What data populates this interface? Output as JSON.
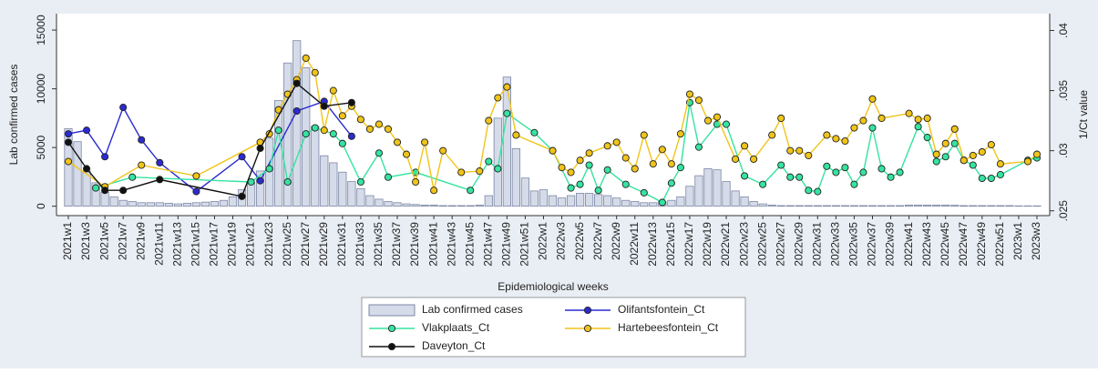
{
  "chart_data": {
    "type": "combo",
    "xlabel": "Epidemiological weeks",
    "ylabel": "Lab confirmed cases",
    "y2label": "1/Ct value",
    "categories": [
      "2021w1",
      null,
      "2021w3",
      null,
      "2021w5",
      null,
      "2021w7",
      null,
      "2021w9",
      null,
      "2021w11",
      null,
      "2021w13",
      null,
      "2021w15",
      null,
      "2021w17",
      null,
      "2021w19",
      null,
      "2021w21",
      null,
      "2021w23",
      null,
      "2021w25",
      null,
      "2021w27",
      null,
      "2021w29",
      null,
      "2021w31",
      null,
      "2021w33",
      null,
      "2021w35",
      null,
      "2021w37",
      null,
      "2021w39",
      null,
      "2021w41",
      null,
      "2021w43",
      null,
      "2021w45",
      null,
      "2021w47",
      null,
      "2021w49",
      null,
      "2021w51",
      null,
      "2022w1",
      null,
      "2022w3",
      null,
      "2022w5",
      null,
      "2022w7",
      null,
      "2022w9",
      null,
      "2022w11",
      null,
      "2022w13",
      null,
      "2022w15",
      null,
      "2022w17",
      null,
      "2022w19",
      null,
      "2022w21",
      null,
      "2022w23",
      null,
      "2022w25",
      null,
      "2022w27",
      null,
      "2022w29",
      null,
      "2022w31",
      null,
      "2022w33",
      null,
      "2022w35",
      null,
      "2022w37",
      null,
      "2022w39",
      null,
      "2022w41",
      null,
      "2022w43",
      null,
      "2022w45",
      null,
      "2022w47",
      null,
      "2022w49",
      null,
      "2022w51",
      null,
      "2023w1",
      null,
      "2023w3"
    ],
    "ylim": [
      -800,
      16400
    ],
    "yticks": [
      0,
      5000,
      10000,
      15000
    ],
    "y2lim": [
      0.0246,
      0.0414
    ],
    "y2ticks": [
      {
        "value": 0.025,
        "label": ".025"
      },
      {
        "value": 0.03,
        "label": ".03"
      },
      {
        "value": 0.035,
        "label": ".035"
      },
      {
        "value": 0.04,
        "label": ".04"
      }
    ],
    "series": [
      {
        "name": "Lab confirmed cases",
        "type": "bar",
        "color": "#d5dbe8",
        "edgecolor": "#7c87a6",
        "values": [
          6600,
          5500,
          3000,
          2000,
          1200,
          800,
          500,
          400,
          300,
          300,
          300,
          250,
          200,
          250,
          300,
          350,
          400,
          500,
          800,
          1400,
          2000,
          3000,
          5800,
          9000,
          12200,
          14100,
          11800,
          6800,
          4300,
          3700,
          2900,
          2100,
          1500,
          900,
          600,
          400,
          300,
          200,
          150,
          100,
          100,
          50,
          50,
          50,
          50,
          100,
          900,
          7500,
          11000,
          4900,
          2400,
          1300,
          1400,
          900,
          700,
          900,
          1100,
          1100,
          1000,
          900,
          700,
          500,
          400,
          300,
          300,
          400,
          500,
          800,
          1700,
          2600,
          3200,
          3100,
          2100,
          1300,
          800,
          400,
          200,
          100,
          50,
          50,
          50,
          50,
          50,
          50,
          50,
          50,
          50,
          50,
          50,
          50,
          50,
          50,
          100,
          100,
          100,
          100,
          100,
          80,
          50,
          50,
          50,
          50,
          50,
          50,
          30,
          30,
          30
        ]
      },
      {
        "name": "Olifantsfontein_Ct",
        "type": "line",
        "axis": "y2",
        "color": "#2b2bd0",
        "values": [
          0.0314,
          null,
          0.0317,
          null,
          0.0295,
          null,
          0.0336,
          null,
          0.0309,
          null,
          0.029,
          null,
          null,
          null,
          0.0266,
          null,
          null,
          null,
          null,
          0.0295,
          null,
          0.0275,
          null,
          null,
          null,
          0.0333,
          null,
          null,
          0.0341,
          null,
          null,
          0.0312,
          null,
          null,
          null,
          null,
          null,
          null,
          null,
          null,
          null,
          null,
          null,
          null,
          null,
          null,
          null,
          null,
          null,
          null,
          null,
          null,
          null,
          null,
          null,
          null,
          null,
          null,
          null,
          null,
          null,
          null,
          null,
          null,
          null,
          null,
          null,
          null,
          null,
          null,
          null,
          null,
          null,
          null,
          null,
          null,
          null,
          null,
          null,
          null,
          null,
          null,
          null,
          null,
          null,
          null,
          null,
          null,
          null,
          null,
          null,
          null,
          null,
          null,
          null,
          null,
          null,
          null,
          null,
          null,
          null,
          null,
          null,
          null,
          null,
          null,
          null
        ]
      },
      {
        "name": "Vlakplaats_Ct",
        "type": "line",
        "axis": "y2",
        "color": "#36e3a0",
        "values": [
          null,
          null,
          null,
          0.0269,
          null,
          null,
          null,
          0.0278,
          null,
          null,
          null,
          null,
          null,
          null,
          null,
          null,
          null,
          null,
          null,
          null,
          0.0274,
          null,
          0.0285,
          0.0317,
          0.0274,
          null,
          0.0314,
          0.0319,
          null,
          0.0314,
          0.0306,
          null,
          0.0274,
          null,
          0.0298,
          0.0278,
          null,
          null,
          0.0282,
          null,
          null,
          null,
          null,
          null,
          0.0267,
          null,
          0.0291,
          0.0285,
          0.0331,
          null,
          null,
          0.0315,
          null,
          0.03,
          null,
          0.0269,
          0.0272,
          0.0288,
          0.0267,
          0.0284,
          null,
          0.0272,
          null,
          0.0265,
          null,
          0.0257,
          0.0273,
          0.0286,
          0.034,
          0.0303,
          null,
          0.0322,
          0.0322,
          null,
          0.0279,
          null,
          0.0272,
          null,
          0.0288,
          0.0278,
          0.0278,
          0.0267,
          0.0266,
          0.0287,
          0.0282,
          0.0286,
          0.0272,
          0.0282,
          0.0319,
          0.0285,
          0.0278,
          0.0282,
          null,
          0.032,
          0.0311,
          0.0291,
          0.0295,
          0.0306,
          0.0292,
          0.0288,
          0.0277,
          0.0277,
          0.028,
          null,
          null,
          0.0292,
          0.0294
        ]
      },
      {
        "name": "Hartebeesfontein_Ct",
        "type": "line",
        "axis": "y2",
        "color": "#f0c419",
        "values": [
          0.0291,
          null,
          null,
          null,
          0.027,
          null,
          null,
          null,
          0.0288,
          null,
          null,
          null,
          null,
          null,
          0.0279,
          null,
          null,
          null,
          null,
          null,
          null,
          0.0307,
          0.0314,
          0.0334,
          0.0347,
          0.0359,
          0.0377,
          0.0365,
          0.0317,
          0.035,
          0.0329,
          0.0337,
          0.0326,
          0.0318,
          0.0322,
          0.0318,
          0.0307,
          0.0297,
          0.0274,
          0.0307,
          0.0267,
          0.03,
          null,
          0.0282,
          null,
          0.0283,
          0.0325,
          0.0344,
          0.0353,
          0.0313,
          null,
          null,
          null,
          0.03,
          0.0286,
          0.0282,
          0.0292,
          0.0298,
          null,
          0.0304,
          0.0307,
          0.0294,
          0.0285,
          0.0313,
          0.0289,
          0.0301,
          0.0289,
          0.0314,
          0.0347,
          0.0342,
          0.0325,
          0.0328,
          null,
          0.0293,
          0.0304,
          0.0293,
          null,
          0.0313,
          0.0327,
          0.03,
          0.03,
          0.0296,
          null,
          0.0313,
          0.031,
          0.0308,
          0.0319,
          0.0325,
          0.0343,
          0.0327,
          null,
          null,
          0.0331,
          0.0326,
          0.0327,
          0.0297,
          0.0306,
          0.0318,
          0.0292,
          0.0296,
          0.0299,
          0.0305,
          0.0289,
          null,
          null,
          0.0291,
          0.0297
        ]
      },
      {
        "name": "Daveyton_Ct",
        "type": "line",
        "axis": "y2",
        "color": "#111111",
        "values": [
          0.0307,
          null,
          0.0285,
          null,
          0.0267,
          null,
          0.0267,
          null,
          null,
          null,
          0.0276,
          null,
          null,
          null,
          null,
          null,
          null,
          null,
          null,
          0.0262,
          null,
          0.0302,
          null,
          null,
          null,
          0.0356,
          null,
          null,
          0.0337,
          null,
          null,
          0.034,
          null,
          null,
          null,
          null,
          null,
          null,
          null,
          null,
          null,
          null,
          null,
          null,
          null,
          null,
          null,
          null,
          null,
          null,
          null,
          null,
          null,
          null,
          null,
          null,
          null,
          null,
          null,
          null,
          null,
          null,
          null,
          null,
          null,
          null,
          null,
          null,
          null,
          null,
          null,
          null,
          null,
          null,
          null,
          null,
          null,
          null,
          null,
          null,
          null,
          null,
          null,
          null,
          null,
          null,
          null,
          null,
          null,
          null,
          null,
          null,
          null,
          null,
          null,
          null,
          null,
          null,
          null,
          null,
          null,
          null,
          null,
          null,
          null,
          null,
          null
        ]
      }
    ]
  }
}
